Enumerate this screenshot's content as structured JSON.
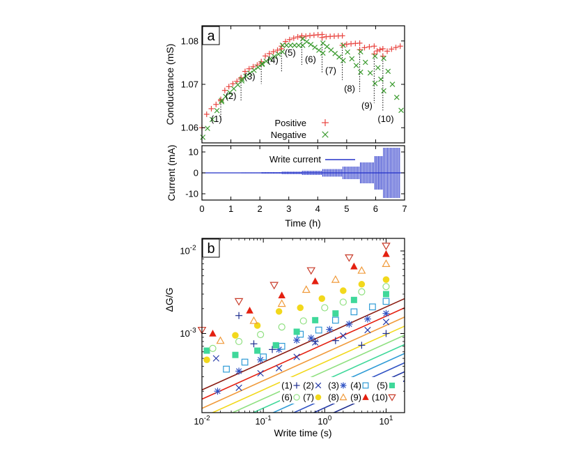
{
  "chart_data": [
    {
      "id": "panel-a-top",
      "type": "scatter",
      "panel": "a",
      "ylabel": "Conductance (mS)",
      "xlim": [
        0,
        7
      ],
      "ylim": [
        1.0565,
        1.0835
      ],
      "yticks": [
        {
          "v": 1.06,
          "label": "1.06"
        },
        {
          "v": 1.07,
          "label": "1.07"
        },
        {
          "v": 1.08,
          "label": "1.08"
        }
      ],
      "series": [
        {
          "name": "Positive",
          "marker": "plus",
          "color": "#e8433e"
        },
        {
          "name": "Negative",
          "marker": "cross",
          "color": "#3a9a2e"
        }
      ],
      "segment_ends": [
        0.0,
        0.65,
        1.35,
        2.05,
        2.75,
        3.45,
        4.15,
        4.85,
        5.45,
        5.95,
        6.25,
        6.85
      ],
      "pos_start": [
        1.06,
        1.0665,
        1.0715,
        1.0752,
        1.0788,
        1.0808,
        1.0808,
        1.079,
        1.078,
        1.077,
        1.0765
      ],
      "pos_end": [
        1.0662,
        1.0712,
        1.0748,
        1.0782,
        1.0812,
        1.0815,
        1.0812,
        1.0795,
        1.0788,
        1.0782,
        1.0788
      ],
      "neg_start": [
        1.0578,
        1.0663,
        1.0712,
        1.0748,
        1.079,
        1.0805,
        1.0795,
        1.079,
        1.0775,
        1.0765,
        1.076
      ],
      "neg_end": [
        1.066,
        1.0708,
        1.0746,
        1.0775,
        1.079,
        1.0772,
        1.0755,
        1.0728,
        1.0702,
        1.0685,
        1.064
      ],
      "dotted_times": [
        0.65,
        1.35,
        2.05,
        2.75,
        3.45,
        4.15,
        4.85,
        5.45,
        5.95,
        6.25
      ],
      "annotations": [
        {
          "text": "(1)",
          "x": 0.5,
          "y": 1.0613
        },
        {
          "text": "(2)",
          "x": 1.0,
          "y": 1.0666
        },
        {
          "text": "(3)",
          "x": 1.65,
          "y": 1.0711
        },
        {
          "text": "(4)",
          "x": 2.45,
          "y": 1.0749
        },
        {
          "text": "(5)",
          "x": 3.05,
          "y": 1.0766
        },
        {
          "text": "(6)",
          "x": 3.75,
          "y": 1.0751
        },
        {
          "text": "(7)",
          "x": 4.45,
          "y": 1.0725
        },
        {
          "text": "(8)",
          "x": 5.1,
          "y": 1.0683
        },
        {
          "text": "(9)",
          "x": 5.7,
          "y": 1.0644
        },
        {
          "text": "(10)",
          "x": 6.35,
          "y": 1.0613
        }
      ]
    },
    {
      "id": "panel-a-bottom",
      "type": "line",
      "panel": "a",
      "xlabel": "Time (h)",
      "ylabel": "Current (mA)",
      "xlim": [
        0,
        7
      ],
      "ylim": [
        -13,
        13
      ],
      "xticks": [
        0,
        1,
        2,
        3,
        4,
        5,
        6,
        7
      ],
      "yticks": [
        -10,
        0,
        10
      ],
      "series": [
        {
          "name": "Write current",
          "color": "#2230c8"
        }
      ],
      "segment_ends": [
        0.0,
        0.65,
        1.35,
        2.05,
        2.75,
        3.45,
        4.15,
        4.85,
        5.45,
        5.95,
        6.25,
        6.85
      ],
      "amplitudes_mA": [
        0.05,
        0.1,
        0.2,
        0.35,
        0.6,
        1.0,
        1.8,
        3.0,
        5.0,
        8.0,
        12.0
      ]
    },
    {
      "id": "panel-b",
      "type": "scatter",
      "panel": "b",
      "xlabel": "Write time (s)",
      "ylabel": "ΔG/G",
      "xscale": "log",
      "yscale": "log",
      "xlim": [
        0.01,
        20
      ],
      "ylim": [
        0.00011,
        0.0142
      ],
      "xticks": [
        {
          "v": 0.01,
          "base": "10",
          "exp": "-2"
        },
        {
          "v": 0.1,
          "base": "10",
          "exp": "-1"
        },
        {
          "v": 1,
          "base": "10",
          "exp": "0"
        },
        {
          "v": 10,
          "base": "10",
          "exp": "1"
        }
      ],
      "yticks": [
        {
          "v": 0.001,
          "base": "10",
          "exp": "-3"
        },
        {
          "v": 0.01,
          "base": "10",
          "exp": "-2"
        }
      ],
      "write_times": [
        0.02,
        0.04,
        0.07,
        0.14,
        0.3,
        0.6,
        1.2,
        2.5,
        5,
        10
      ],
      "slope": 0.335,
      "series": [
        {
          "name": "(1)",
          "marker": "plus",
          "color": "#1d2d8f",
          "amp": 9.8e-05,
          "pts": [
            [
              0.04,
              0.00165
            ],
            [
              0.07,
              0.00075
            ],
            [
              0.14,
              0.00064
            ],
            [
              0.7,
              0.0008
            ],
            [
              1.5,
              0.00082
            ],
            [
              4.0,
              0.00072
            ],
            [
              10,
              0.001
            ]
          ]
        },
        {
          "name": "(2)",
          "marker": "cross",
          "color": "#243aa8",
          "amp": 0.000126,
          "pts": [
            [
              0.017,
              0.0005
            ],
            [
              0.04,
              0.00022
            ],
            [
              0.09,
              0.00033
            ],
            [
              0.18,
              0.00038
            ],
            [
              0.35,
              0.00052
            ],
            [
              0.7,
              0.00078
            ],
            [
              2.0,
              0.00094
            ],
            [
              5.0,
              0.0011
            ],
            [
              10,
              0.00138
            ]
          ]
        },
        {
          "name": "(3)",
          "marker": "asterisk",
          "color": "#2f52c4",
          "amp": 0.000162,
          "pts": [
            [
              0.018,
              0.0002
            ],
            [
              0.04,
              0.00035
            ],
            [
              0.09,
              0.00048
            ],
            [
              0.18,
              0.00064
            ],
            [
              0.35,
              0.00083
            ],
            [
              0.6,
              0.00088
            ],
            [
              1.2,
              0.00112
            ],
            [
              2.5,
              0.0013
            ],
            [
              5.0,
              0.0015
            ],
            [
              10,
              0.00175
            ]
          ]
        },
        {
          "name": "(4)",
          "marker": "square-open",
          "color": "#2e9bd6",
          "amp": 0.00021,
          "pts": [
            [
              0.025,
              0.00037
            ],
            [
              0.05,
              0.00045
            ],
            [
              0.1,
              0.00052
            ],
            [
              0.2,
              0.0007
            ],
            [
              0.4,
              0.00098
            ],
            [
              0.8,
              0.0011
            ],
            [
              1.5,
              0.00145
            ],
            [
              3.0,
              0.00183
            ],
            [
              6.0,
              0.0021
            ],
            [
              10,
              0.00245
            ]
          ]
        },
        {
          "name": "(5)",
          "marker": "square-filled",
          "color": "#3fd89a",
          "amp": 0.00027,
          "pts": [
            [
              0.012,
              0.00062
            ],
            [
              0.035,
              0.00055
            ],
            [
              0.08,
              0.00062
            ],
            [
              0.16,
              0.00072
            ],
            [
              0.35,
              0.00105
            ],
            [
              0.7,
              0.00145
            ],
            [
              1.5,
              0.00175
            ],
            [
              3.0,
              0.00255
            ],
            [
              10,
              0.003
            ]
          ]
        },
        {
          "name": "(6)",
          "marker": "circle-open",
          "color": "#8fe080",
          "amp": 0.00035,
          "pts": [
            [
              0.015,
              0.00066
            ],
            [
              0.04,
              0.0008
            ],
            [
              0.09,
              0.00097
            ],
            [
              0.2,
              0.0012
            ],
            [
              0.45,
              0.00142
            ],
            [
              1.0,
              0.00205
            ],
            [
              2.0,
              0.0024
            ],
            [
              4.0,
              0.0032
            ],
            [
              10,
              0.0037
            ]
          ]
        },
        {
          "name": "(7)",
          "marker": "circle-filled",
          "color": "#f2d81c",
          "amp": 0.00045,
          "pts": [
            [
              0.012,
              0.00048
            ],
            [
              0.035,
              0.00095
            ],
            [
              0.08,
              0.00125
            ],
            [
              0.18,
              0.00185
            ],
            [
              0.4,
              0.00205
            ],
            [
              0.9,
              0.00265
            ],
            [
              2.0,
              0.0033
            ],
            [
              4.0,
              0.00395
            ],
            [
              10,
              0.0045
            ]
          ]
        },
        {
          "name": "(8)",
          "marker": "triangle-open",
          "color": "#f09a3a",
          "amp": 0.00058,
          "pts": [
            [
              0.02,
              0.00082
            ],
            [
              0.07,
              0.00143
            ],
            [
              0.2,
              0.0023
            ],
            [
              0.5,
              0.0034
            ],
            [
              1.5,
              0.0045
            ],
            [
              4.0,
              0.0058
            ],
            [
              10,
              0.007
            ]
          ]
        },
        {
          "name": "(9)",
          "marker": "triangle-filled",
          "color": "#e42010",
          "amp": 0.00075,
          "pts": [
            [
              0.015,
              0.001
            ],
            [
              0.06,
              0.0019
            ],
            [
              0.2,
              0.0029
            ],
            [
              0.7,
              0.0043
            ],
            [
              3.0,
              0.0065
            ],
            [
              10,
              0.0092
            ]
          ]
        },
        {
          "name": "(10)",
          "marker": "triangle-down-open",
          "color": "#c83a28",
          "line_color": "#8a1a0f",
          "amp": 0.00097,
          "pts": [
            [
              0.01,
              0.0011
            ],
            [
              0.04,
              0.00245
            ],
            [
              0.15,
              0.00385
            ],
            [
              0.6,
              0.0058
            ],
            [
              2.5,
              0.0083
            ],
            [
              10,
              0.0115
            ]
          ]
        }
      ]
    }
  ],
  "labels": {
    "panel_a": "a",
    "panel_b": "b",
    "legend_positive": "Positive",
    "legend_negative": "Negative",
    "legend_write_current": "Write current",
    "ylabel_conductance": "Conductance (mS)",
    "ylabel_current": "Current (mA)",
    "xlabel_time": "Time (h)",
    "ylabel_dg": "ΔG/G",
    "xlabel_write_time": "Write time (s)"
  }
}
